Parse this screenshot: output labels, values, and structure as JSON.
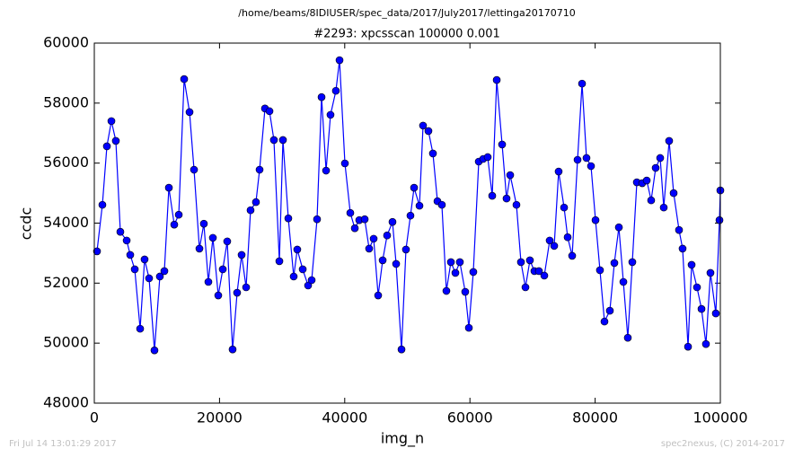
{
  "chart_data": {
    "type": "line",
    "suptitle": "/home/beams/8IDIUSER/spec_data/2017/July2017/lettinga20170710",
    "title": "#2293: xpcsscan 100000 0.001",
    "x_label": "img_n",
    "y_label": "ccdc",
    "footer_left": "Fri Jul 14 13:01:29 2017",
    "footer_right": "spec2nexus, (C) 2014-2017",
    "color": "#0000ff",
    "marker": true,
    "grid": false,
    "xlim": [
      0,
      100000
    ],
    "xticks": [
      0,
      20000,
      40000,
      60000,
      80000,
      100000
    ],
    "ylim": [
      48000,
      60000
    ],
    "yticks": [
      48000,
      50000,
      52000,
      54000,
      56000,
      58000,
      60000
    ],
    "x": [
      430,
      1290,
      2010,
      2730,
      3440,
      4160,
      5170,
      5740,
      6460,
      7320,
      8030,
      8750,
      9610,
      10470,
      11190,
      11910,
      12770,
      13490,
      14350,
      15210,
      15930,
      16790,
      17500,
      18220,
      18940,
      19800,
      20520,
      21230,
      22090,
      22810,
      23530,
      24250,
      24960,
      25820,
      26400,
      27260,
      27980,
      28690,
      29560,
      30130,
      30990,
      31850,
      32420,
      33290,
      34150,
      34720,
      35580,
      36300,
      37020,
      37730,
      38590,
      39170,
      40030,
      40890,
      41610,
      42320,
      43190,
      43900,
      44620,
      45340,
      46060,
      46770,
      47630,
      48210,
      49070,
      49780,
      50500,
      51080,
      51940,
      52510,
      53370,
      54090,
      54810,
      55520,
      56240,
      56960,
      57680,
      58390,
      59250,
      59830,
      60540,
      61410,
      62120,
      62840,
      63560,
      64280,
      65140,
      65850,
      66430,
      67430,
      68150,
      68870,
      69580,
      70300,
      71020,
      71880,
      72740,
      73460,
      74170,
      75040,
      75610,
      76330,
      77190,
      77910,
      78620,
      79340,
      80060,
      80770,
      81490,
      82350,
      83070,
      83790,
      84510,
      85220,
      85940,
      86660,
      87520,
      88240,
      88950,
      89670,
      90390,
      90960,
      91820,
      92540,
      93400,
      93970,
      94840,
      95410,
      96270,
      96990,
      97700,
      98420,
      99280,
      99860,
      100000
    ],
    "values": [
      53060,
      54610,
      56560,
      57400,
      56740,
      53710,
      53420,
      52940,
      52460,
      50480,
      52790,
      52160,
      49760,
      52220,
      52400,
      55180,
      53950,
      54280,
      58800,
      57700,
      55780,
      53150,
      53980,
      52040,
      53510,
      51590,
      52460,
      53390,
      49790,
      51680,
      52940,
      51860,
      54430,
      54700,
      55780,
      57820,
      57730,
      56770,
      52730,
      56770,
      54160,
      52220,
      53120,
      52460,
      51920,
      52100,
      54130,
      58200,
      55750,
      57610,
      58410,
      59430,
      55990,
      54340,
      53830,
      54100,
      54130,
      53150,
      53480,
      51590,
      52760,
      53590,
      54040,
      52640,
      49790,
      53120,
      54250,
      55180,
      54580,
      57250,
      57070,
      56320,
      54730,
      54610,
      51740,
      52700,
      52340,
      52700,
      51710,
      50510,
      52370,
      56050,
      56140,
      56200,
      54910,
      58770,
      56620,
      54820,
      55600,
      54610,
      52700,
      51860,
      52760,
      52400,
      52400,
      52250,
      53420,
      53240,
      55720,
      54520,
      53530,
      52910,
      56110,
      58650,
      56170,
      55900,
      54100,
      52430,
      50720,
      51080,
      52670,
      53860,
      52040,
      50180,
      52700,
      55360,
      55330,
      55420,
      54760,
      55840,
      56170,
      54520,
      56740,
      55000,
      53770,
      53150,
      49880,
      52610,
      51860,
      51140,
      49970,
      52340,
      50990,
      54100,
      55090
    ]
  }
}
